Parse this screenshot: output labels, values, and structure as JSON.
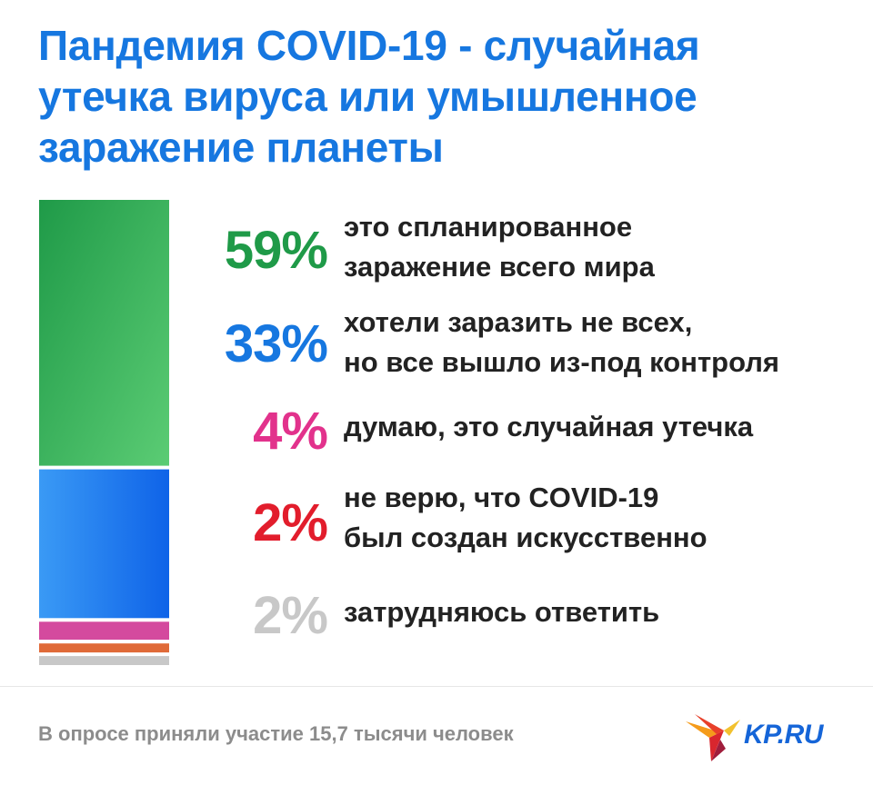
{
  "chart_data": {
    "type": "bar",
    "title_lines": [
      "Пандемия COVID-19 - случайная",
      "утечка вируса или умышленное",
      "заражение планеты"
    ],
    "categories": [
      "это спланированное заражение всего мира",
      "хотели заразить не всех, но все вышло из-под контроля",
      "думаю, это случайная утечка",
      "не верю, что COVID-19 был создан искусственно",
      "затрудняюсь ответить"
    ],
    "values": [
      59,
      33,
      4,
      2,
      2
    ],
    "unit": "%",
    "stacked": true
  },
  "items": [
    {
      "pct": "59%",
      "color": "#1f9a48",
      "bar_color": "#4cc36a",
      "lines": [
        "это спланированное",
        "заражение всего мира"
      ]
    },
    {
      "pct": "33%",
      "color": "#1677e0",
      "bar_color": "#2d8cf0",
      "lines": [
        "хотели заразить не всех,",
        "но все вышло из-под контроля"
      ]
    },
    {
      "pct": "4%",
      "color": "#e2328c",
      "bar_color": "#d44a9e",
      "lines": [
        "думаю, это случайная утечка"
      ]
    },
    {
      "pct": "2%",
      "color": "#e21d2c",
      "bar_color": "#e06a38",
      "lines": [
        "не верю, что COVID-19",
        "был создан искусственно"
      ]
    },
    {
      "pct": "2%",
      "color": "#c8c8c8",
      "bar_color": "#c8c8c8",
      "lines": [
        "затрудняюсь ответить"
      ]
    }
  ],
  "footer": {
    "note": "В опросе приняли участие 15,7 тысячи человек",
    "logo_text": "KP.RU"
  }
}
